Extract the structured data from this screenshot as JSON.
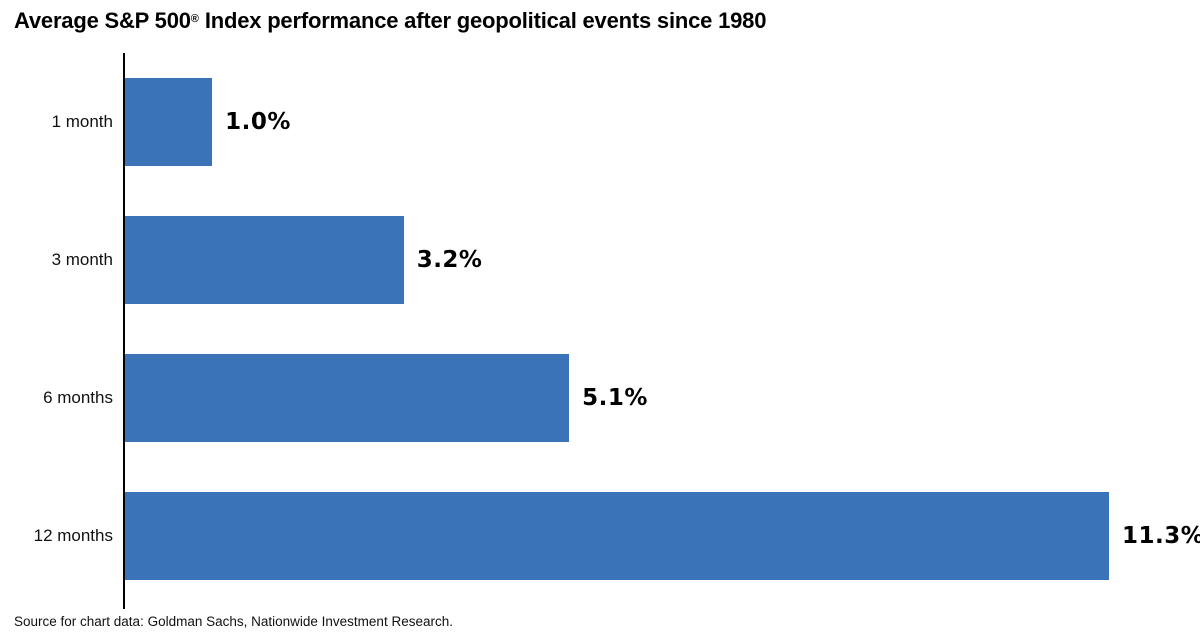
{
  "title": {
    "prefix": "Average S&P 500",
    "registered": "®",
    "suffix": " Index performance after geopolitical events since 1980"
  },
  "source": "Source for chart data: Goldman Sachs, Nationwide Investment Research.",
  "colors": {
    "bar": "#3A73B8",
    "axis": "#000000",
    "text": "#000000"
  },
  "chart_data": {
    "type": "bar",
    "orientation": "horizontal",
    "title": "Average S&P 500® Index performance after geopolitical events since 1980",
    "categories": [
      "1 month",
      "3 month",
      "6 months",
      "12 months"
    ],
    "values": [
      1.0,
      3.2,
      5.1,
      11.3
    ],
    "value_labels": [
      "1.0%",
      "3.2%",
      "5.1%",
      "11.3%"
    ],
    "xlabel": "",
    "ylabel": "",
    "xlim": [
      0,
      12.6
    ],
    "grid": false,
    "legend": false,
    "annotations": "Source for chart data: Goldman Sachs, Nationwide Investment Research."
  }
}
